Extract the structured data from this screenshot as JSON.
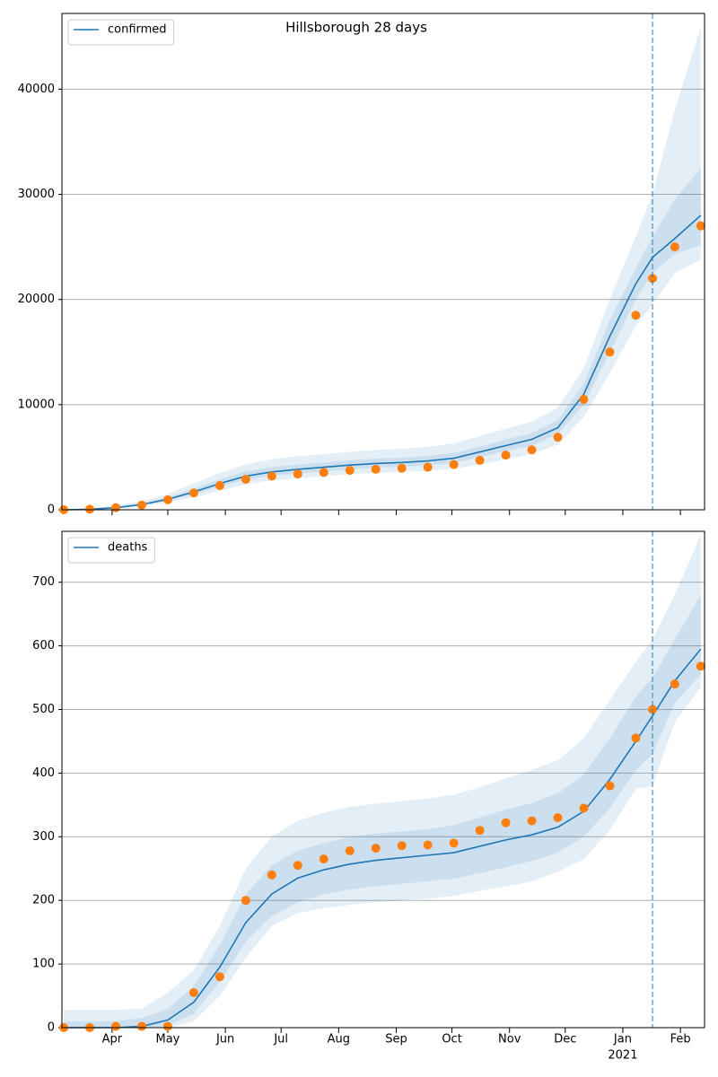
{
  "chart_data": [
    {
      "type": "line",
      "title": "Hillsborough 28 days",
      "x": [
        "2020-03-06",
        "2020-03-20",
        "2020-04-03",
        "2020-04-17",
        "2020-05-01",
        "2020-05-15",
        "2020-05-29",
        "2020-06-12",
        "2020-06-26",
        "2020-07-10",
        "2020-07-24",
        "2020-08-07",
        "2020-08-21",
        "2020-09-04",
        "2020-09-18",
        "2020-10-02",
        "2020-10-16",
        "2020-10-30",
        "2020-11-13",
        "2020-11-27",
        "2020-12-11",
        "2020-12-25",
        "2021-01-08",
        "2021-01-17",
        "2021-01-29",
        "2021-02-12"
      ],
      "series": [
        {
          "name": "confirmed",
          "color": "#1f77b4",
          "values": [
            0,
            50,
            200,
            500,
            1000,
            1700,
            2500,
            3200,
            3600,
            3850,
            4050,
            4250,
            4400,
            4500,
            4650,
            4900,
            5500,
            6100,
            6700,
            7800,
            11000,
            16500,
            21500,
            24000,
            25800,
            28000
          ]
        },
        {
          "color": "#ff7f0e",
          "marker": "o",
          "values": [
            0,
            50,
            200,
            450,
            950,
            1600,
            2300,
            2900,
            3200,
            3400,
            3550,
            3750,
            3850,
            3950,
            4050,
            4300,
            4700,
            5200,
            5700,
            6900,
            10500,
            15000,
            18500,
            22000,
            25000,
            27000
          ]
        }
      ],
      "bands": [
        {
          "color": "#1f77b4",
          "lower": [
            0,
            20,
            100,
            300,
            700,
            1200,
            1800,
            2400,
            2800,
            3000,
            3200,
            3400,
            3500,
            3600,
            3700,
            3900,
            4300,
            4800,
            5300,
            6200,
            8800,
            13000,
            17500,
            19500,
            22500,
            23800
          ],
          "upper": [
            0,
            100,
            400,
            800,
            1500,
            2500,
            3500,
            4300,
            4800,
            5100,
            5300,
            5500,
            5700,
            5800,
            6000,
            6300,
            7000,
            7700,
            8400,
            9700,
            13500,
            20000,
            26000,
            30000,
            38000,
            46000
          ]
        },
        {
          "color": "#1f77b4",
          "lower": [
            0,
            35,
            150,
            400,
            850,
            1450,
            2200,
            2850,
            3250,
            3450,
            3650,
            3850,
            4000,
            4100,
            4250,
            4450,
            5000,
            5600,
            6100,
            7200,
            10000,
            15000,
            20000,
            22500,
            24300,
            25200
          ],
          "upper": [
            0,
            70,
            280,
            620,
            1200,
            2000,
            2900,
            3650,
            4050,
            4300,
            4500,
            4700,
            4850,
            4950,
            5100,
            5400,
            6000,
            6700,
            7300,
            8500,
            12000,
            18000,
            23000,
            26000,
            29500,
            32500
          ]
        }
      ],
      "vline": "2021-01-17",
      "xlim": [
        "2020-03-05",
        "2021-02-14"
      ],
      "ylim": [
        0,
        47200
      ],
      "yticks": [
        0,
        10000,
        20000,
        30000,
        40000
      ],
      "grid": true,
      "legend": "upper left"
    },
    {
      "type": "line",
      "x": [
        "2020-03-06",
        "2020-03-20",
        "2020-04-03",
        "2020-04-17",
        "2020-05-01",
        "2020-05-15",
        "2020-05-29",
        "2020-06-12",
        "2020-06-26",
        "2020-07-10",
        "2020-07-24",
        "2020-08-07",
        "2020-08-21",
        "2020-09-04",
        "2020-09-18",
        "2020-10-02",
        "2020-10-16",
        "2020-10-30",
        "2020-11-13",
        "2020-11-27",
        "2020-12-11",
        "2020-12-25",
        "2021-01-08",
        "2021-01-17",
        "2021-01-29",
        "2021-02-12"
      ],
      "series": [
        {
          "name": "deaths",
          "color": "#1f77b4",
          "values": [
            0,
            0,
            0,
            2,
            12,
            40,
            95,
            165,
            210,
            235,
            248,
            257,
            263,
            267,
            271,
            275,
            285,
            295,
            303,
            315,
            340,
            390,
            450,
            490,
            545,
            595
          ]
        },
        {
          "color": "#ff7f0e",
          "marker": "o",
          "values": [
            0,
            0,
            2,
            2,
            2,
            55,
            80,
            200,
            240,
            255,
            265,
            278,
            282,
            286,
            287,
            290,
            310,
            322,
            325,
            330,
            345,
            380,
            455,
            500,
            540,
            568
          ]
        }
      ],
      "bands": [
        {
          "color": "#1f77b4",
          "lower": [
            0,
            0,
            0,
            0,
            0,
            10,
            50,
            110,
            160,
            180,
            188,
            193,
            197,
            200,
            203,
            207,
            215,
            222,
            230,
            245,
            265,
            310,
            375,
            380,
            480,
            535
          ],
          "upper": [
            28,
            28,
            28,
            30,
            55,
            90,
            160,
            250,
            300,
            325,
            338,
            347,
            352,
            356,
            360,
            366,
            378,
            392,
            405,
            420,
            455,
            515,
            575,
            610,
            680,
            775
          ]
        },
        {
          "color": "#1f77b4",
          "lower": [
            0,
            0,
            0,
            0,
            3,
            22,
            72,
            135,
            175,
            197,
            210,
            217,
            222,
            226,
            230,
            234,
            243,
            252,
            262,
            275,
            300,
            345,
            405,
            430,
            510,
            555
          ],
          "upper": [
            10,
            10,
            10,
            15,
            30,
            65,
            130,
            210,
            255,
            278,
            290,
            300,
            305,
            308,
            312,
            318,
            330,
            343,
            353,
            368,
            398,
            455,
            520,
            550,
            610,
            680
          ]
        }
      ],
      "vline": "2021-01-17",
      "xlim": [
        "2020-03-05",
        "2021-02-14"
      ],
      "xticks": [
        {
          "value": "2020-04-01",
          "label": "Apr"
        },
        {
          "value": "2020-05-01",
          "label": "May"
        },
        {
          "value": "2020-06-01",
          "label": "Jun"
        },
        {
          "value": "2020-07-01",
          "label": "Jul"
        },
        {
          "value": "2020-08-01",
          "label": "Aug"
        },
        {
          "value": "2020-09-01",
          "label": "Sep"
        },
        {
          "value": "2020-10-01",
          "label": "Oct"
        },
        {
          "value": "2020-11-01",
          "label": "Nov"
        },
        {
          "value": "2020-12-01",
          "label": "Dec"
        },
        {
          "value": "2021-01-01",
          "label": "Jan"
        },
        {
          "value": "2021-02-01",
          "label": "Feb"
        }
      ],
      "x_year_label": {
        "value": "2021-01-01",
        "label": "2021"
      },
      "ylim": [
        0,
        780
      ],
      "yticks": [
        0,
        100,
        200,
        300,
        400,
        500,
        600,
        700
      ],
      "grid": true,
      "legend": "upper left"
    }
  ]
}
